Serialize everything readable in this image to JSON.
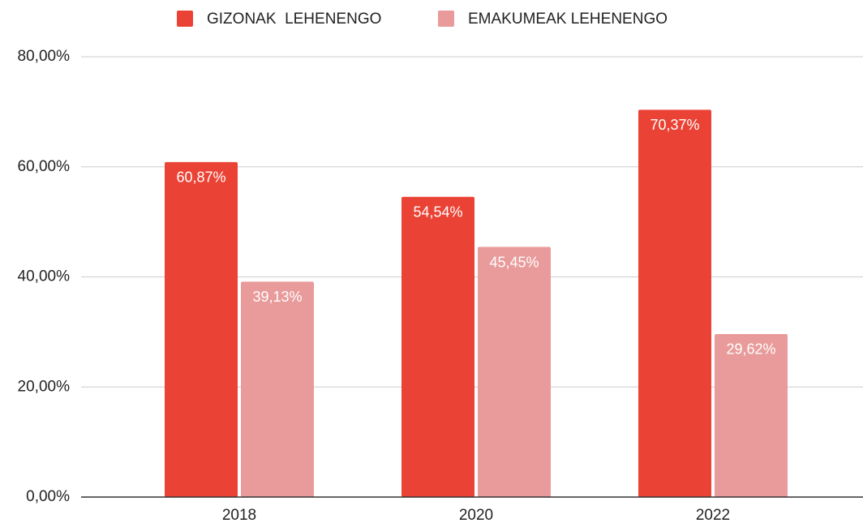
{
  "chart_data": {
    "type": "bar",
    "categories": [
      "2018",
      "2020",
      "2022"
    ],
    "series": [
      {
        "name": "GIZONAK  LEHENENGO",
        "color": "#ea4335",
        "values": [
          60.87,
          54.54,
          70.37
        ],
        "value_labels": [
          "60,87%",
          "54,54%",
          "70,37%"
        ]
      },
      {
        "name": "EMAKUMEAK LEHENENGO",
        "color": "#e99a9a",
        "values": [
          39.13,
          45.45,
          29.62
        ],
        "value_labels": [
          "39,13%",
          "45,45%",
          "29,62%"
        ]
      }
    ],
    "ylim": [
      0,
      80
    ],
    "yticks": [
      {
        "value": 0,
        "label": "0,00%"
      },
      {
        "value": 20,
        "label": "20,00%"
      },
      {
        "value": 40,
        "label": "40,00%"
      },
      {
        "value": 60,
        "label": "60,00%"
      },
      {
        "value": 80,
        "label": "80,00%"
      }
    ],
    "grid": true,
    "legend": "top"
  }
}
